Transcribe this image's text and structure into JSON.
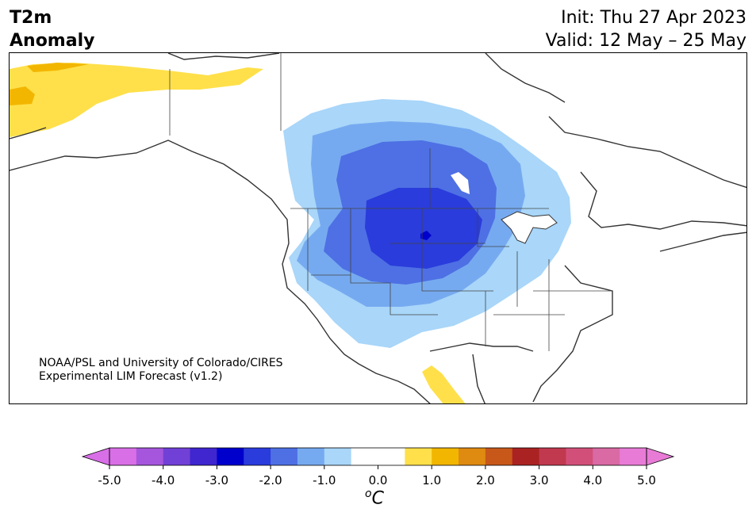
{
  "header": {
    "title_line1": "T2m",
    "title_line2": "Anomaly",
    "init": "Init: Thu 27 Apr 2023",
    "valid": "Valid: 12 May – 25 May"
  },
  "credit": {
    "line1": "NOAA/PSL and University of Colorado/CIRES",
    "line2": "Experimental LIM Forecast (v1.2)"
  },
  "colorbar": {
    "ticks": [
      "-5.0",
      "-4.0",
      "-3.0",
      "-2.0",
      "-1.0",
      "0.0",
      "1.0",
      "2.0",
      "3.0",
      "4.0",
      "5.0"
    ],
    "unit_sup": "o",
    "unit_main": "C",
    "colors": [
      "#d86fe6",
      "#a556dc",
      "#7140d6",
      "#3f26cf",
      "#0000cd",
      "#2a3cdb",
      "#4e70e4",
      "#76aaf0",
      "#a9d6f9",
      "#ffffff",
      "#ffffff",
      "#ffe04a",
      "#f2b600",
      "#df8a10",
      "#c8581a",
      "#ab2222",
      "#c1394f",
      "#d24f7a",
      "#d96aa4",
      "#e87bd6"
    ],
    "under_color": "#d86fe6",
    "over_color": "#e87bd6"
  }
}
